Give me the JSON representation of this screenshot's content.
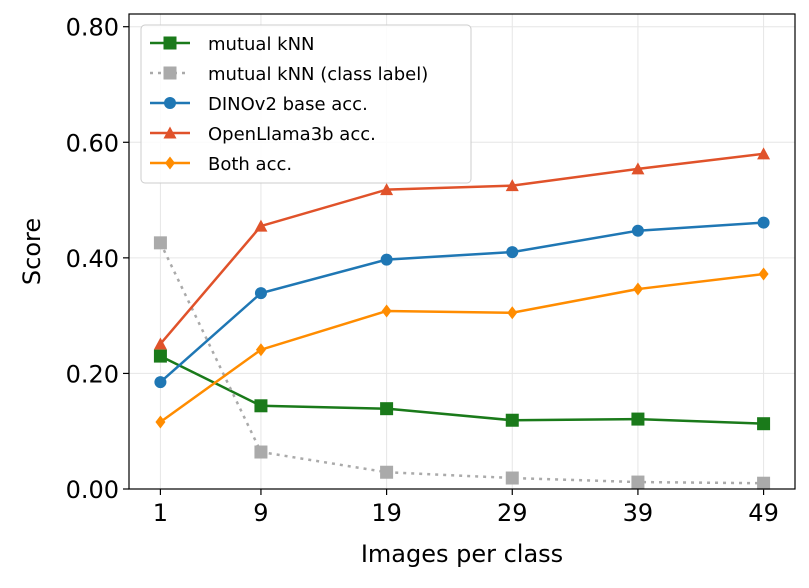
{
  "chart_data": {
    "type": "line",
    "title": "",
    "xlabel": "Images per class",
    "ylabel": "Score",
    "x": [
      1,
      9,
      19,
      29,
      39,
      49
    ],
    "xticks": [
      "1",
      "9",
      "19",
      "29",
      "39",
      "49"
    ],
    "yticks": [
      "0.00",
      "0.20",
      "0.40",
      "0.60",
      "0.80"
    ],
    "ytick_values": [
      0,
      0.2,
      0.4,
      0.6,
      0.8
    ],
    "xlim": [
      -1.5,
      51.5
    ],
    "ylim": [
      0,
      0.822
    ],
    "grid": true,
    "legend_position": "top-left",
    "series": [
      {
        "name": "mutual kNN",
        "color": "#1a7a1a",
        "marker": "square",
        "style": "solid",
        "values": [
          0.23,
          0.144,
          0.139,
          0.119,
          0.121,
          0.113
        ]
      },
      {
        "name": "mutual kNN (class label)",
        "color": "#aaaaaa",
        "marker": "square",
        "style": "dotted",
        "values": [
          0.426,
          0.064,
          0.029,
          0.019,
          0.012,
          0.01
        ]
      },
      {
        "name": "DINOv2 base acc.",
        "color": "#1f77b4",
        "marker": "circle",
        "style": "solid",
        "values": [
          0.185,
          0.339,
          0.397,
          0.41,
          0.447,
          0.461
        ]
      },
      {
        "name": "OpenLlama3b acc.",
        "color": "#e0522a",
        "marker": "triangle",
        "style": "solid",
        "values": [
          0.251,
          0.455,
          0.518,
          0.525,
          0.554,
          0.58
        ]
      },
      {
        "name": "Both acc.",
        "color": "#ff8c00",
        "marker": "diamond",
        "style": "solid",
        "values": [
          0.116,
          0.241,
          0.308,
          0.305,
          0.346,
          0.372
        ]
      }
    ]
  }
}
